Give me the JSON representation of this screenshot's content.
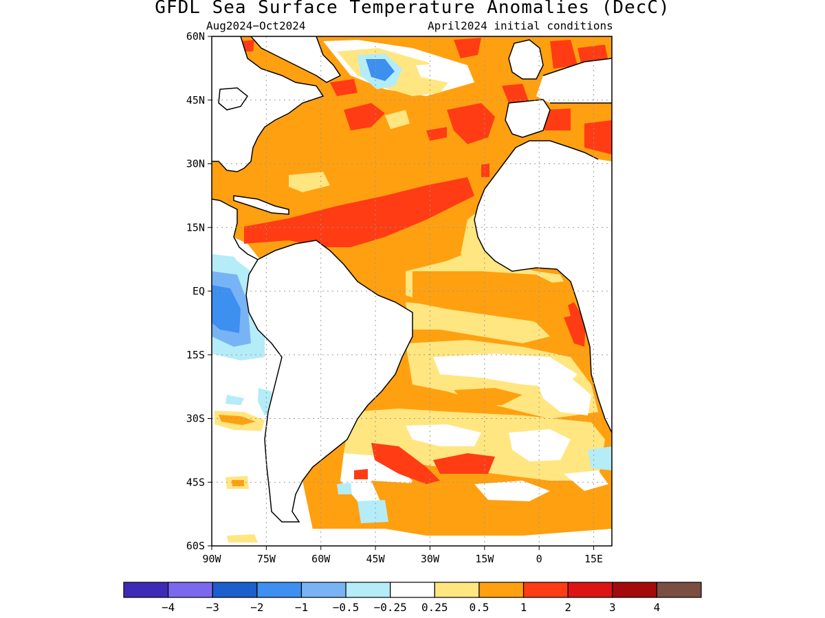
{
  "title": "GFDL Sea Surface Temperature Anomalies (DecC)",
  "subtitle_left": "Aug2024−Oct2024",
  "subtitle_right": "April2024 initial conditions",
  "lat_labels": [
    "60N",
    "45N",
    "30N",
    "15N",
    "EQ",
    "15S",
    "30S",
    "45S",
    "60S"
  ],
  "lon_labels": [
    "90W",
    "75W",
    "60W",
    "45W",
    "30W",
    "15W",
    "0",
    "15E"
  ],
  "colorbar": {
    "colors": [
      "#3d2bb8",
      "#7b68ee",
      "#1a5fcc",
      "#3d8ff0",
      "#78b4f5",
      "#b4ecf8",
      "#ffffff",
      "#ffe680",
      "#ffa010",
      "#ff3c14",
      "#dc1414",
      "#a50a0a",
      "#7a4e40"
    ],
    "labels": [
      "−4",
      "−3",
      "−2",
      "−1",
      "−0.5",
      "−0.25",
      "0.25",
      "0.5",
      "1",
      "2",
      "3",
      "4"
    ]
  },
  "colors": {
    "land": "#ffffff",
    "coast": "#000000",
    "grid": "#999999"
  }
}
